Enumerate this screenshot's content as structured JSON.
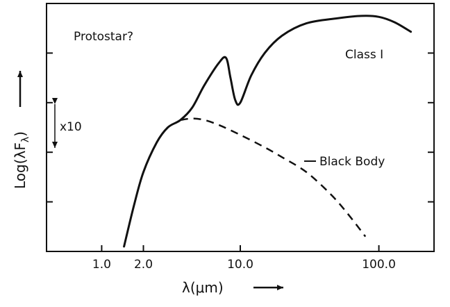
{
  "chart_data": {
    "type": "line",
    "title": "",
    "xlabel": "λ(μm)",
    "ylabel": "Log(λF",
    "ylabel_sub": "λ",
    "x_scale": "log",
    "xlim": [
      0.4,
      250
    ],
    "ylim": [
      0,
      5
    ],
    "grid": false,
    "x_ticks": [
      {
        "value": 1.0,
        "label": "1.0"
      },
      {
        "value": 2.0,
        "label": "2.0"
      },
      {
        "value": 10.0,
        "label": "10.0"
      },
      {
        "value": 100.0,
        "label": "100.0"
      }
    ],
    "y_ticks": [
      1,
      2,
      3,
      4
    ],
    "series": [
      {
        "name": "Class I",
        "style": "solid",
        "points": [
          [
            1.45,
            0.1
          ],
          [
            1.7,
            0.9
          ],
          [
            2.0,
            1.6
          ],
          [
            2.5,
            2.2
          ],
          [
            3.0,
            2.5
          ],
          [
            3.7,
            2.65
          ],
          [
            4.5,
            2.9
          ],
          [
            5.5,
            3.35
          ],
          [
            7.0,
            3.8
          ],
          [
            7.9,
            3.9
          ],
          [
            8.5,
            3.5
          ],
          [
            9.2,
            3.05
          ],
          [
            10.0,
            3.0
          ],
          [
            12.0,
            3.55
          ],
          [
            15.0,
            4.0
          ],
          [
            20.0,
            4.35
          ],
          [
            30.0,
            4.6
          ],
          [
            50.0,
            4.7
          ],
          [
            75.0,
            4.75
          ],
          [
            100.0,
            4.73
          ],
          [
            130.0,
            4.62
          ],
          [
            170.0,
            4.43
          ]
        ]
      },
      {
        "name": "Black Body",
        "style": "dashed",
        "points": [
          [
            3.7,
            2.65
          ],
          [
            4.5,
            2.68
          ],
          [
            5.5,
            2.65
          ],
          [
            7.0,
            2.55
          ],
          [
            10.0,
            2.35
          ],
          [
            15.0,
            2.1
          ],
          [
            20.0,
            1.9
          ],
          [
            30.0,
            1.6
          ],
          [
            45.0,
            1.15
          ],
          [
            60.0,
            0.75
          ],
          [
            80.0,
            0.3
          ]
        ]
      }
    ],
    "annotations": [
      {
        "text": "Protostar?"
      },
      {
        "text": "Class I"
      },
      {
        "text": "Black Body"
      },
      {
        "text": "x10"
      }
    ]
  }
}
